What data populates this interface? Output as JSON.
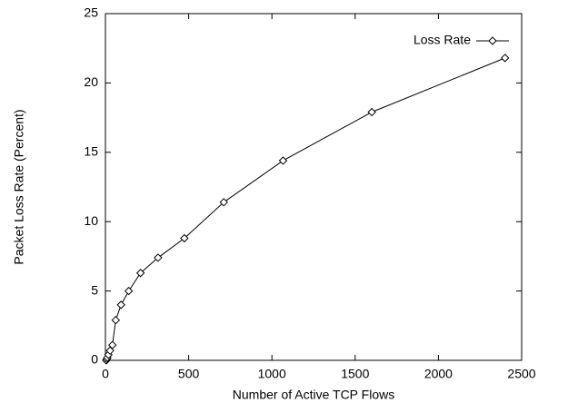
{
  "chart_data": {
    "type": "line",
    "x_label": "Number of Active TCP Flows",
    "y_label": "Packet Loss Rate (Percent)",
    "xlim": [
      0,
      2500
    ],
    "xticks": [
      0,
      500,
      1000,
      1500,
      2000,
      2500
    ],
    "ylim": [
      0,
      25
    ],
    "yticks": [
      0,
      5,
      10,
      15,
      20,
      25
    ],
    "legend": "top-right",
    "series": [
      {
        "name": "Loss Rate",
        "color": "#000000",
        "x": [
          5,
          8,
          12,
          18,
          28,
          42,
          62,
          94,
          140,
          211,
          316,
          474,
          711,
          1067,
          1600,
          2400
        ],
        "values": [
          0,
          0.1,
          0.2,
          0.4,
          0.7,
          1.1,
          2.9,
          4.0,
          5.0,
          6.3,
          7.4,
          8.8,
          11.4,
          14.4,
          17.9,
          21.8
        ]
      }
    ]
  }
}
